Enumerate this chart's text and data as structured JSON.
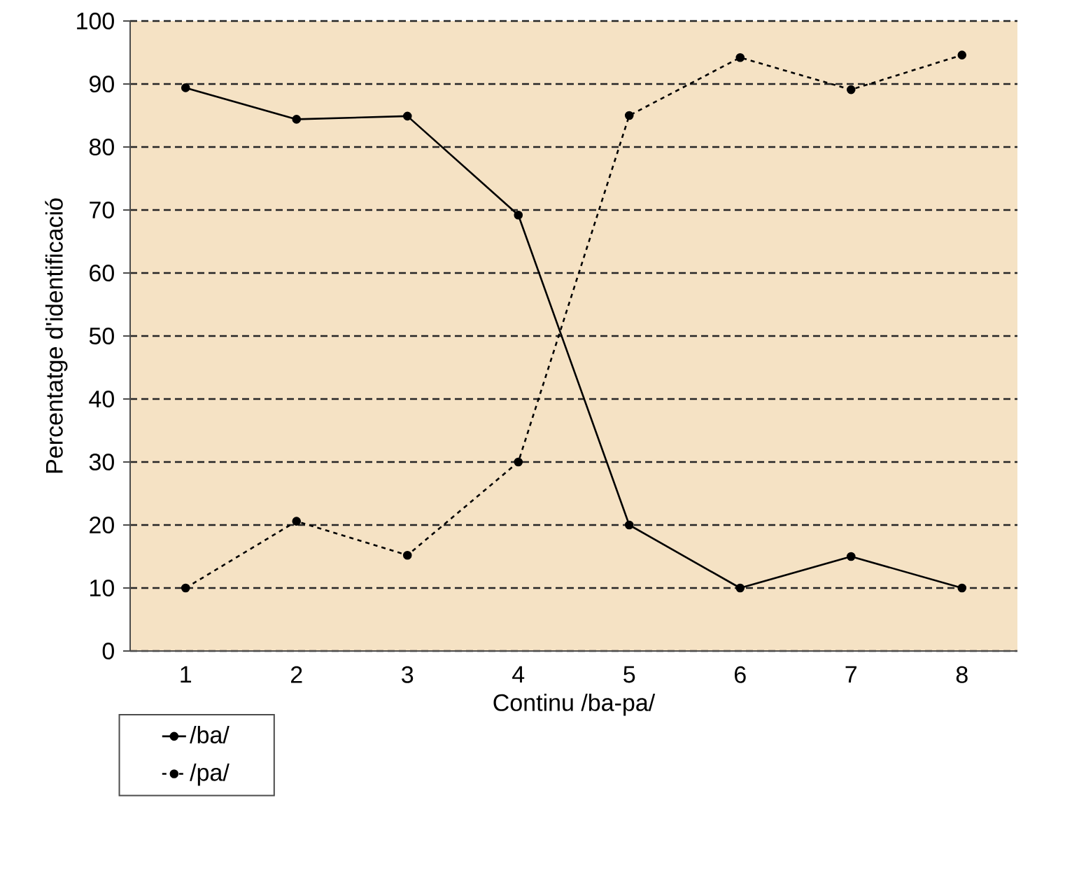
{
  "chart_data": {
    "type": "line",
    "xlabel": "Continu /ba-pa/",
    "ylabel": "Percentatge d'identificació",
    "categories": [
      "1",
      "2",
      "3",
      "4",
      "5",
      "6",
      "7",
      "8"
    ],
    "series": [
      {
        "name": "/ba/",
        "color": "#000000",
        "line_style": "solid",
        "values": [
          89.4,
          84.4,
          84.9,
          69.2,
          20,
          10,
          15,
          10
        ]
      },
      {
        "name": "/pa/",
        "color": "#000000",
        "line_style": "dashed",
        "values": [
          10,
          20.6,
          15.2,
          30,
          85,
          94.2,
          89.1,
          94.6
        ]
      }
    ],
    "ylim": [
      0,
      100
    ],
    "yticks": [
      0,
      10,
      20,
      30,
      40,
      50,
      60,
      70,
      80,
      90,
      100
    ],
    "grid": "y",
    "legend": "bottom left",
    "marker": "circle"
  }
}
